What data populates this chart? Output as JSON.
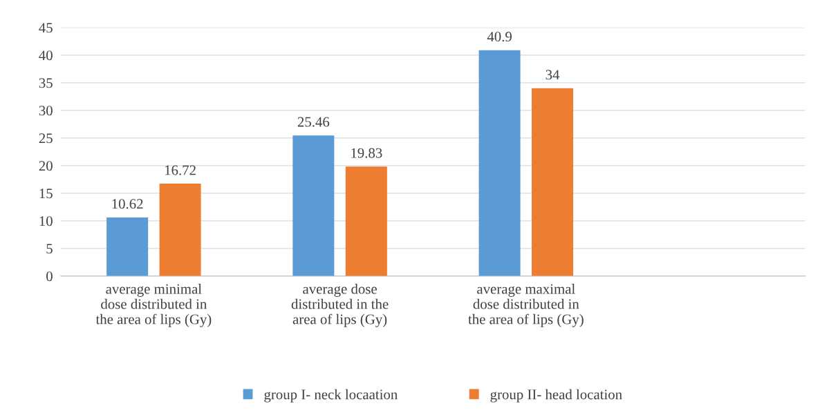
{
  "chart_data": {
    "type": "bar",
    "categories": [
      "average minimal\ndose distributed in\nthe area of lips (Gy)",
      "average dose\ndistributed in the\narea of lips (Gy)",
      "average maximal\ndose distributed in\nthe area of lips (Gy)",
      null
    ],
    "series": [
      {
        "name": "group I- neck locaation",
        "color": "#5b9bd5",
        "values": [
          10.62,
          25.46,
          40.9,
          null
        ]
      },
      {
        "name": "group II- head location",
        "color": "#ed7d31",
        "values": [
          16.72,
          19.83,
          34,
          null
        ]
      }
    ],
    "ylim": [
      0,
      45
    ],
    "yticks": [
      0,
      5,
      10,
      15,
      20,
      25,
      30,
      35,
      40,
      45
    ],
    "grid": "y",
    "legend": "bottom",
    "data_labels": true
  }
}
